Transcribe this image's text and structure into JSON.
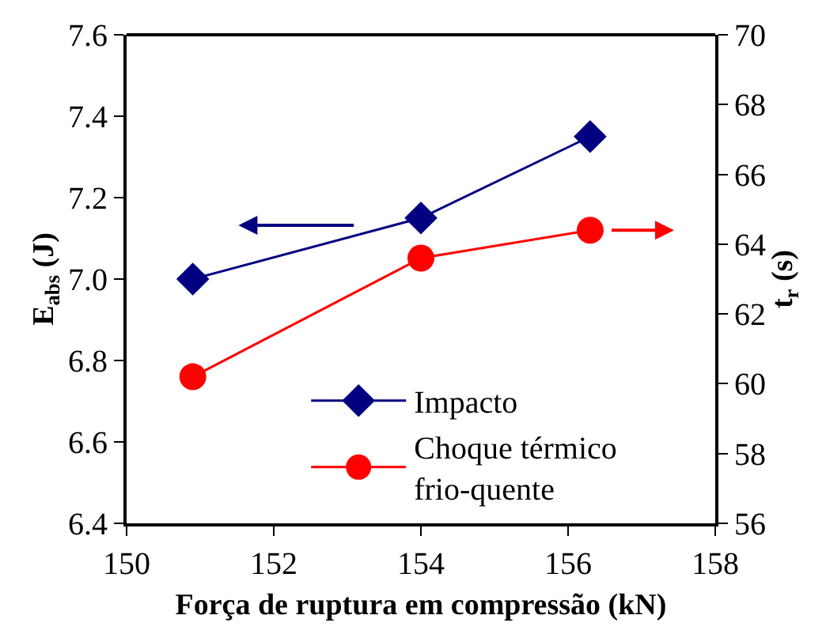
{
  "chart_data": {
    "type": "line",
    "xlabel": "Força de ruptura em compressão (kN)",
    "ylabel": "E$_{abs}$ (J)",
    "y2label": "t$_{r}$ (s)",
    "x": [
      150.9,
      154.0,
      156.3
    ],
    "series": [
      {
        "name": "Impacto",
        "color": "#000080",
        "values": [
          7.0,
          7.15,
          7.35
        ],
        "marker": "diamond"
      },
      {
        "name": "Choque térmico frio-quente",
        "color": "#ff0000",
        "values": [
          60.2,
          63.6,
          64.4
        ],
        "marker": "circle",
        "axis": "y2"
      }
    ],
    "xlim": [
      150,
      158
    ],
    "xticks": [
      150,
      152,
      154,
      156,
      158
    ],
    "ylim": [
      6.4,
      7.6
    ],
    "yticks": [
      {
        "value": 6.4,
        "label": "6.4"
      },
      {
        "value": 6.6,
        "label": "6.6"
      },
      {
        "value": 6.8,
        "label": "6.8"
      },
      {
        "value": 7.0,
        "label": "7.0"
      },
      {
        "value": 7.2,
        "label": "7.2"
      },
      {
        "value": 7.4,
        "label": "7.4"
      },
      {
        "value": 7.6,
        "label": "7.6"
      }
    ],
    "y2lim": [
      56,
      70
    ],
    "y2ticks": [
      56,
      58,
      60,
      62,
      64,
      66,
      68,
      70
    ],
    "legend": "bottom",
    "line_style": "solid"
  }
}
